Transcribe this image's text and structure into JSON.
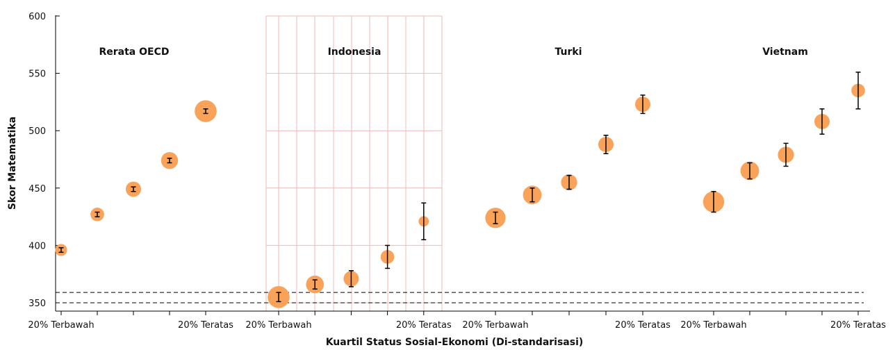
{
  "chart_data": {
    "type": "scatter",
    "ylabel": "Skor Matematika",
    "xlabel": "Kuartil Status Sosial-Ekonomi (Di-standarisasi)",
    "ylim": [
      345,
      602
    ],
    "yticks": [
      350,
      400,
      450,
      500,
      550,
      600
    ],
    "grid": "Indonesia panel only",
    "colors": {
      "marker": "#F9A25A",
      "errorbar": "#000000",
      "grid": "#F2B8B8",
      "reference_line": "#000000"
    },
    "reference_lines": [
      350,
      359
    ],
    "x_tick_labels": {
      "first": "20% Terbawah",
      "last": "20% Teratas"
    },
    "panels": [
      {
        "name": "Rerata OECD",
        "points": [
          {
            "y": 396,
            "err": 2,
            "size": 0.3
          },
          {
            "y": 427,
            "err": 2,
            "size": 0.4
          },
          {
            "y": 449,
            "err": 2,
            "size": 0.5
          },
          {
            "y": 474,
            "err": 2,
            "size": 0.6
          },
          {
            "y": 517,
            "err": 2,
            "size": 0.9
          }
        ]
      },
      {
        "name": "Indonesia",
        "points": [
          {
            "y": 355,
            "err": 4,
            "size": 0.9
          },
          {
            "y": 366,
            "err": 4,
            "size": 0.65
          },
          {
            "y": 371,
            "err": 7,
            "size": 0.5
          },
          {
            "y": 390,
            "err": 10,
            "size": 0.4
          },
          {
            "y": 421,
            "err": 16,
            "size": 0.2
          }
        ]
      },
      {
        "name": "Turki",
        "points": [
          {
            "y": 424,
            "err": 5,
            "size": 0.8
          },
          {
            "y": 444,
            "err": 6,
            "size": 0.7
          },
          {
            "y": 455,
            "err": 6,
            "size": 0.55
          },
          {
            "y": 488,
            "err": 8,
            "size": 0.5
          },
          {
            "y": 523,
            "err": 8,
            "size": 0.5
          }
        ]
      },
      {
        "name": "Vietnam",
        "points": [
          {
            "y": 438,
            "err": 9,
            "size": 0.85
          },
          {
            "y": 465,
            "err": 7,
            "size": 0.7
          },
          {
            "y": 479,
            "err": 10,
            "size": 0.55
          },
          {
            "y": 508,
            "err": 11,
            "size": 0.5
          },
          {
            "y": 535,
            "err": 16,
            "size": 0.4
          }
        ]
      }
    ]
  }
}
